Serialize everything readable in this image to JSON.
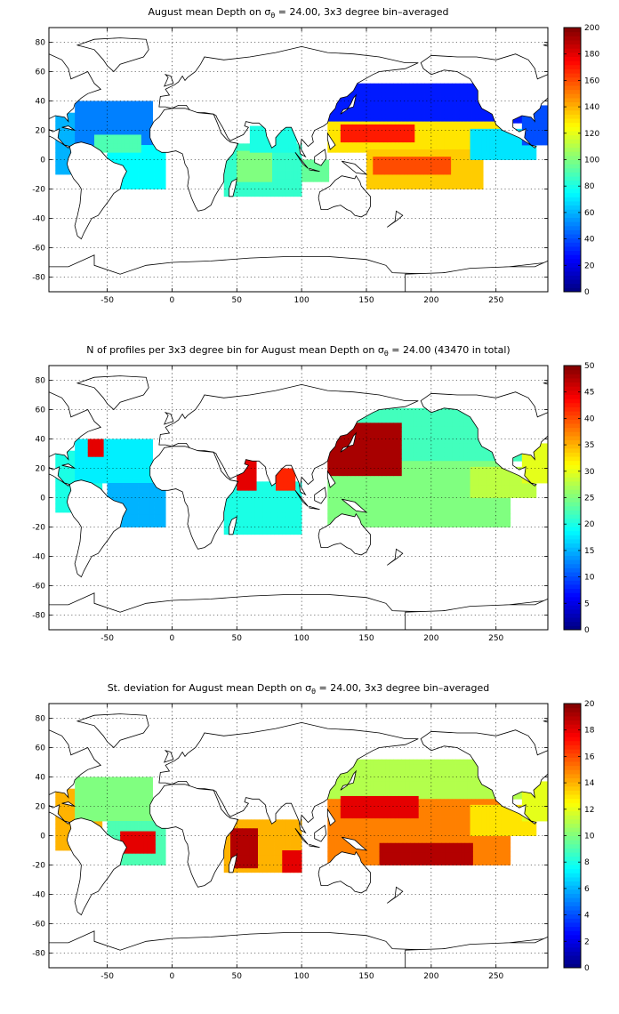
{
  "chart_data": [
    {
      "type": "heatmap",
      "title_pre": "August mean Depth on ",
      "title_sym": "σ",
      "title_sub": "θ",
      "title_post": " = 24.00, 3x3 degree bin–averaged",
      "xlim": [
        -95,
        290
      ],
      "ylim": [
        -90,
        90
      ],
      "xticks": [
        -50,
        0,
        50,
        100,
        150,
        200,
        250
      ],
      "yticks": [
        -80,
        -60,
        -40,
        -20,
        0,
        20,
        40,
        60,
        80
      ],
      "colorbar": {
        "min": 0,
        "max": 200,
        "ticks": [
          0,
          20,
          40,
          60,
          80,
          100,
          120,
          140,
          160,
          180,
          200
        ]
      },
      "colormap": "jet",
      "grid": true,
      "regions": [
        {
          "lon": [
            -90,
            -55
          ],
          "lat": [
            -10,
            30
          ],
          "value": 60
        },
        {
          "lon": [
            -75,
            -15
          ],
          "lat": [
            10,
            40
          ],
          "value": 50
        },
        {
          "lon": [
            -50,
            -5
          ],
          "lat": [
            -20,
            10
          ],
          "value": 75
        },
        {
          "lon": [
            -60,
            -25
          ],
          "lat": [
            5,
            15
          ],
          "value": 90
        },
        {
          "lon": [
            40,
            100
          ],
          "lat": [
            -25,
            10
          ],
          "value": 85
        },
        {
          "lon": [
            50,
            75
          ],
          "lat": [
            -15,
            5
          ],
          "value": 100
        },
        {
          "lon": [
            60,
            95
          ],
          "lat": [
            5,
            22
          ],
          "value": 80
        },
        {
          "lon": [
            100,
            120
          ],
          "lat": [
            -15,
            0
          ],
          "value": 95
        },
        {
          "lon": [
            120,
            270
          ],
          "lat": [
            25,
            50
          ],
          "value": 30
        },
        {
          "lon": [
            120,
            260
          ],
          "lat": [
            5,
            25
          ],
          "value": 130
        },
        {
          "lon": [
            130,
            185
          ],
          "lat": [
            12,
            22
          ],
          "value": 170
        },
        {
          "lon": [
            150,
            240
          ],
          "lat": [
            -20,
            5
          ],
          "value": 135
        },
        {
          "lon": [
            155,
            215
          ],
          "lat": [
            -10,
            2
          ],
          "value": 160
        },
        {
          "lon": [
            230,
            280
          ],
          "lat": [
            0,
            20
          ],
          "value": 70
        },
        {
          "lon": [
            270,
            290
          ],
          "lat": [
            10,
            35
          ],
          "value": 40
        }
      ]
    },
    {
      "type": "heatmap",
      "title_pre": "N of profiles per 3x3 degree bin for August mean Depth on ",
      "title_sym": "σ",
      "title_sub": "θ",
      "title_post": " = 24.00 (43470 in total)",
      "xlim": [
        -95,
        290
      ],
      "ylim": [
        -90,
        90
      ],
      "xticks": [
        -50,
        0,
        50,
        100,
        150,
        200,
        250
      ],
      "yticks": [
        -80,
        -60,
        -40,
        -20,
        0,
        20,
        40,
        60,
        80
      ],
      "colorbar": {
        "min": 0,
        "max": 50,
        "ticks": [
          0,
          5,
          10,
          15,
          20,
          25,
          30,
          35,
          40,
          45,
          50
        ]
      },
      "colormap": "jet",
      "grid": true,
      "regions": [
        {
          "lon": [
            -90,
            -55
          ],
          "lat": [
            -10,
            30
          ],
          "value": 20
        },
        {
          "lon": [
            -75,
            -15
          ],
          "lat": [
            10,
            40
          ],
          "value": 18
        },
        {
          "lon": [
            -50,
            -5
          ],
          "lat": [
            -20,
            10
          ],
          "value": 15
        },
        {
          "lon": [
            -65,
            -55
          ],
          "lat": [
            28,
            38
          ],
          "value": 45
        },
        {
          "lon": [
            40,
            100
          ],
          "lat": [
            -25,
            10
          ],
          "value": 20
        },
        {
          "lon": [
            50,
            65
          ],
          "lat": [
            5,
            25
          ],
          "value": 45
        },
        {
          "lon": [
            80,
            95
          ],
          "lat": [
            5,
            20
          ],
          "value": 42
        },
        {
          "lon": [
            120,
            270
          ],
          "lat": [
            25,
            60
          ],
          "value": 22
        },
        {
          "lon": [
            120,
            260
          ],
          "lat": [
            -20,
            25
          ],
          "value": 25
        },
        {
          "lon": [
            120,
            175
          ],
          "lat": [
            15,
            50
          ],
          "value": 48
        },
        {
          "lon": [
            230,
            280
          ],
          "lat": [
            0,
            20
          ],
          "value": 28
        },
        {
          "lon": [
            270,
            290
          ],
          "lat": [
            10,
            35
          ],
          "value": 30
        }
      ]
    },
    {
      "type": "heatmap",
      "title_pre": "St. deviation for August mean Depth on ",
      "title_sym": "σ",
      "title_sub": "θ",
      "title_post": " = 24.00, 3x3 degree bin–averaged",
      "xlim": [
        -95,
        290
      ],
      "ylim": [
        -90,
        90
      ],
      "xticks": [
        -50,
        0,
        50,
        100,
        150,
        200,
        250
      ],
      "yticks": [
        -80,
        -60,
        -40,
        -20,
        0,
        20,
        40,
        60,
        80
      ],
      "colorbar": {
        "min": 0,
        "max": 20,
        "ticks": [
          0,
          2,
          4,
          6,
          8,
          10,
          12,
          14,
          16,
          18,
          20
        ]
      },
      "colormap": "jet",
      "grid": true,
      "regions": [
        {
          "lon": [
            -90,
            -55
          ],
          "lat": [
            -10,
            30
          ],
          "value": 14
        },
        {
          "lon": [
            -75,
            -15
          ],
          "lat": [
            10,
            40
          ],
          "value": 10
        },
        {
          "lon": [
            -50,
            -5
          ],
          "lat": [
            -20,
            10
          ],
          "value": 9
        },
        {
          "lon": [
            -40,
            -15
          ],
          "lat": [
            -12,
            2
          ],
          "value": 18
        },
        {
          "lon": [
            40,
            100
          ],
          "lat": [
            -25,
            10
          ],
          "value": 14
        },
        {
          "lon": [
            45,
            65
          ],
          "lat": [
            -22,
            5
          ],
          "value": 19
        },
        {
          "lon": [
            85,
            100
          ],
          "lat": [
            -25,
            -10
          ],
          "value": 18
        },
        {
          "lon": [
            120,
            270
          ],
          "lat": [
            25,
            50
          ],
          "value": 11
        },
        {
          "lon": [
            120,
            260
          ],
          "lat": [
            -20,
            25
          ],
          "value": 15
        },
        {
          "lon": [
            130,
            190
          ],
          "lat": [
            12,
            25
          ],
          "value": 18
        },
        {
          "lon": [
            160,
            230
          ],
          "lat": [
            -20,
            -5
          ],
          "value": 19
        },
        {
          "lon": [
            230,
            280
          ],
          "lat": [
            0,
            20
          ],
          "value": 13
        },
        {
          "lon": [
            270,
            290
          ],
          "lat": [
            10,
            35
          ],
          "value": 12
        }
      ]
    }
  ]
}
